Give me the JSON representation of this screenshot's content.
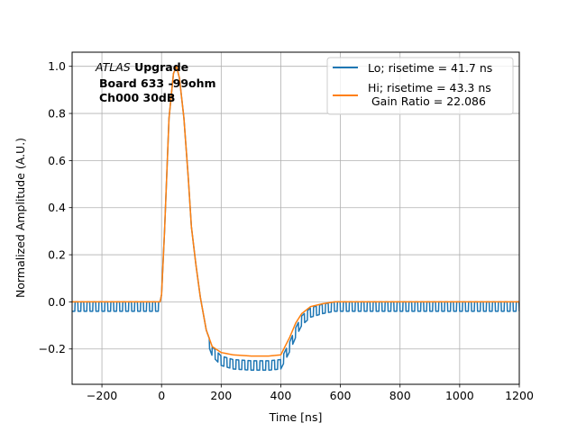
{
  "chart_data": {
    "type": "line",
    "xlabel": "Time [ns]",
    "ylabel": "Normalized Amplitude (A.U.)",
    "xlim": [
      -300,
      1200
    ],
    "ylim": [
      -0.35,
      1.06
    ],
    "xticks": [
      -200,
      0,
      200,
      400,
      600,
      800,
      1000,
      1200
    ],
    "yticks": [
      -0.2,
      0.0,
      0.2,
      0.4,
      0.6,
      0.8,
      1.0
    ],
    "grid": true,
    "legend_position": "top-right",
    "annotation": {
      "line1_italic": "ATLAS",
      "line1_bold": " Upgrade",
      "line2": "Board 633 -99ohm",
      "line3": "Ch000 30dB"
    },
    "series": [
      {
        "name": "Lo; risetime = 41.7 ns",
        "color": "#1f77b4",
        "ripple_period_ns": 20,
        "ripple_amplitude": 0.04,
        "x": [
          -300,
          -5,
          0,
          10,
          25,
          40,
          50,
          60,
          75,
          90,
          100,
          115,
          130,
          150,
          170,
          200,
          240,
          300,
          360,
          400,
          410,
          430,
          450,
          470,
          500,
          540,
          580,
          620,
          700,
          1200
        ],
        "y": [
          0.0,
          0.0,
          0.03,
          0.3,
          0.78,
          0.97,
          1.0,
          0.95,
          0.78,
          0.52,
          0.32,
          0.16,
          0.02,
          -0.12,
          -0.19,
          -0.23,
          -0.245,
          -0.25,
          -0.25,
          -0.245,
          -0.22,
          -0.17,
          -0.11,
          -0.06,
          -0.025,
          -0.01,
          0.0,
          0.0,
          0.0,
          0.0
        ]
      },
      {
        "name": "Hi; risetime = 43.3 ns\n Gain Ratio = 22.086",
        "color": "#ff7f0e",
        "ripple_period_ns": 0,
        "ripple_amplitude": 0,
        "x": [
          -300,
          -5,
          0,
          10,
          25,
          40,
          50,
          60,
          75,
          90,
          100,
          115,
          130,
          150,
          170,
          200,
          240,
          300,
          360,
          400,
          410,
          430,
          450,
          470,
          500,
          540,
          580,
          620,
          700,
          1200
        ],
        "y": [
          0.0,
          0.0,
          0.03,
          0.3,
          0.78,
          0.97,
          1.0,
          0.95,
          0.78,
          0.52,
          0.32,
          0.16,
          0.02,
          -0.12,
          -0.19,
          -0.215,
          -0.225,
          -0.23,
          -0.23,
          -0.225,
          -0.2,
          -0.15,
          -0.09,
          -0.05,
          -0.02,
          -0.008,
          0.0,
          0.0,
          0.0,
          0.0
        ]
      }
    ]
  }
}
